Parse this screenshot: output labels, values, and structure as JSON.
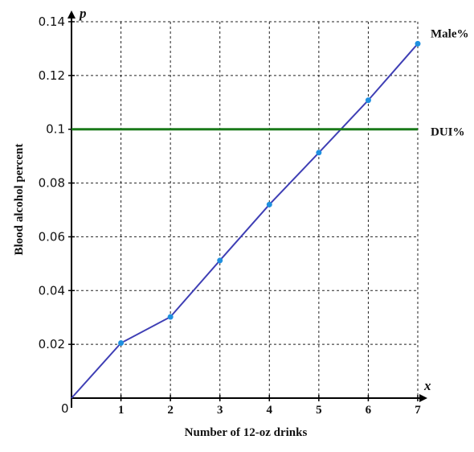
{
  "chart_data": {
    "type": "line",
    "xlabel": "Number of 12-oz drinks",
    "ylabel": "Blood alcohol percent",
    "x_axis_letter": "x",
    "y_axis_letter": "p",
    "origin_label": "0",
    "xlim": [
      0,
      7
    ],
    "ylim": [
      0,
      0.14
    ],
    "x_ticks": [
      1,
      2,
      3,
      4,
      5,
      6,
      7
    ],
    "y_ticks": [
      0.02,
      0.04,
      0.06,
      0.08,
      0.1,
      0.12,
      0.14
    ],
    "grid": true,
    "series": [
      {
        "name": "Male%",
        "x": [
          0,
          1,
          2,
          3,
          4,
          5,
          6,
          7
        ],
        "y": [
          0,
          0.0205,
          0.0302,
          0.0512,
          0.072,
          0.0913,
          0.1108,
          0.1318
        ],
        "color": "#3f3fb5",
        "marker_color": "#1e90e0"
      },
      {
        "name": "DUI%",
        "x": [
          0,
          7
        ],
        "y": [
          0.1,
          0.1
        ],
        "color": "#1a7a1a"
      }
    ]
  }
}
